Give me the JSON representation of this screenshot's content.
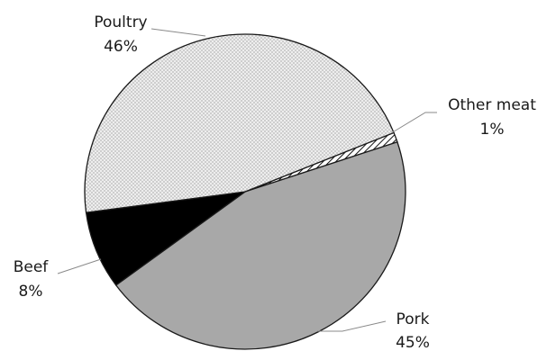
{
  "chart_data": {
    "type": "pie",
    "title": "",
    "legend": "none",
    "slices": [
      {
        "label": "Poultry",
        "value": 46,
        "value_label": "46%",
        "color": "#eeeeee",
        "pattern": "crosshatch-dots"
      },
      {
        "label": "Other meat",
        "value": 1,
        "value_label": "1%",
        "color": "#ffffff",
        "pattern": "diagonal-stripes"
      },
      {
        "label": "Pork",
        "value": 45,
        "value_label": "45%",
        "color": "#a8a8a8",
        "pattern": "solid"
      },
      {
        "label": "Beef",
        "value": 8,
        "value_label": "8%",
        "color": "#000000",
        "pattern": "solid"
      }
    ]
  }
}
